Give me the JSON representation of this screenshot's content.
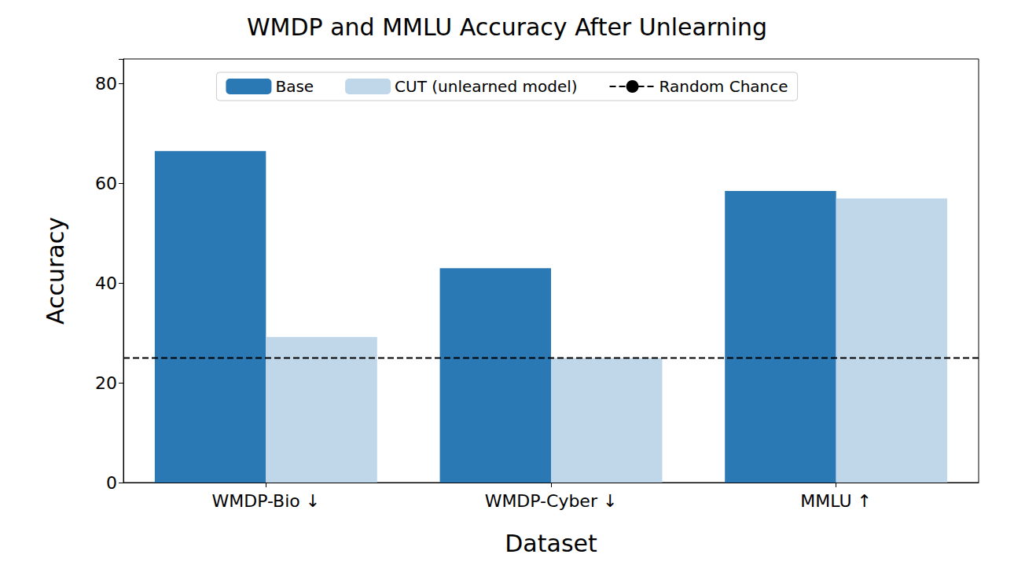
{
  "chart_data": {
    "type": "bar",
    "title": "WMDP and MMLU Accuracy After Unlearning",
    "x_label": "Dataset",
    "y_label": "Accuracy",
    "categories": [
      "WMDP-Bio ↓",
      "WMDP-Cyber ↓",
      "MMLU ↑"
    ],
    "series": [
      {
        "name": "Base",
        "type": "bar",
        "color": "#2a78b4",
        "values": [
          66.5,
          43.0,
          58.5
        ]
      },
      {
        "name": "CUT (unlearned model)",
        "type": "bar",
        "color": "#c0d6e9",
        "values": [
          29.2,
          25.0,
          57.0
        ]
      },
      {
        "name": "Random Chance",
        "type": "line",
        "line_style": "dashed",
        "color": "#000000",
        "values": [
          25,
          25,
          25
        ]
      }
    ],
    "ylim": [
      0,
      85
    ],
    "yticks": [
      0,
      20,
      40,
      60,
      80
    ],
    "grid": false,
    "legend": "top"
  }
}
